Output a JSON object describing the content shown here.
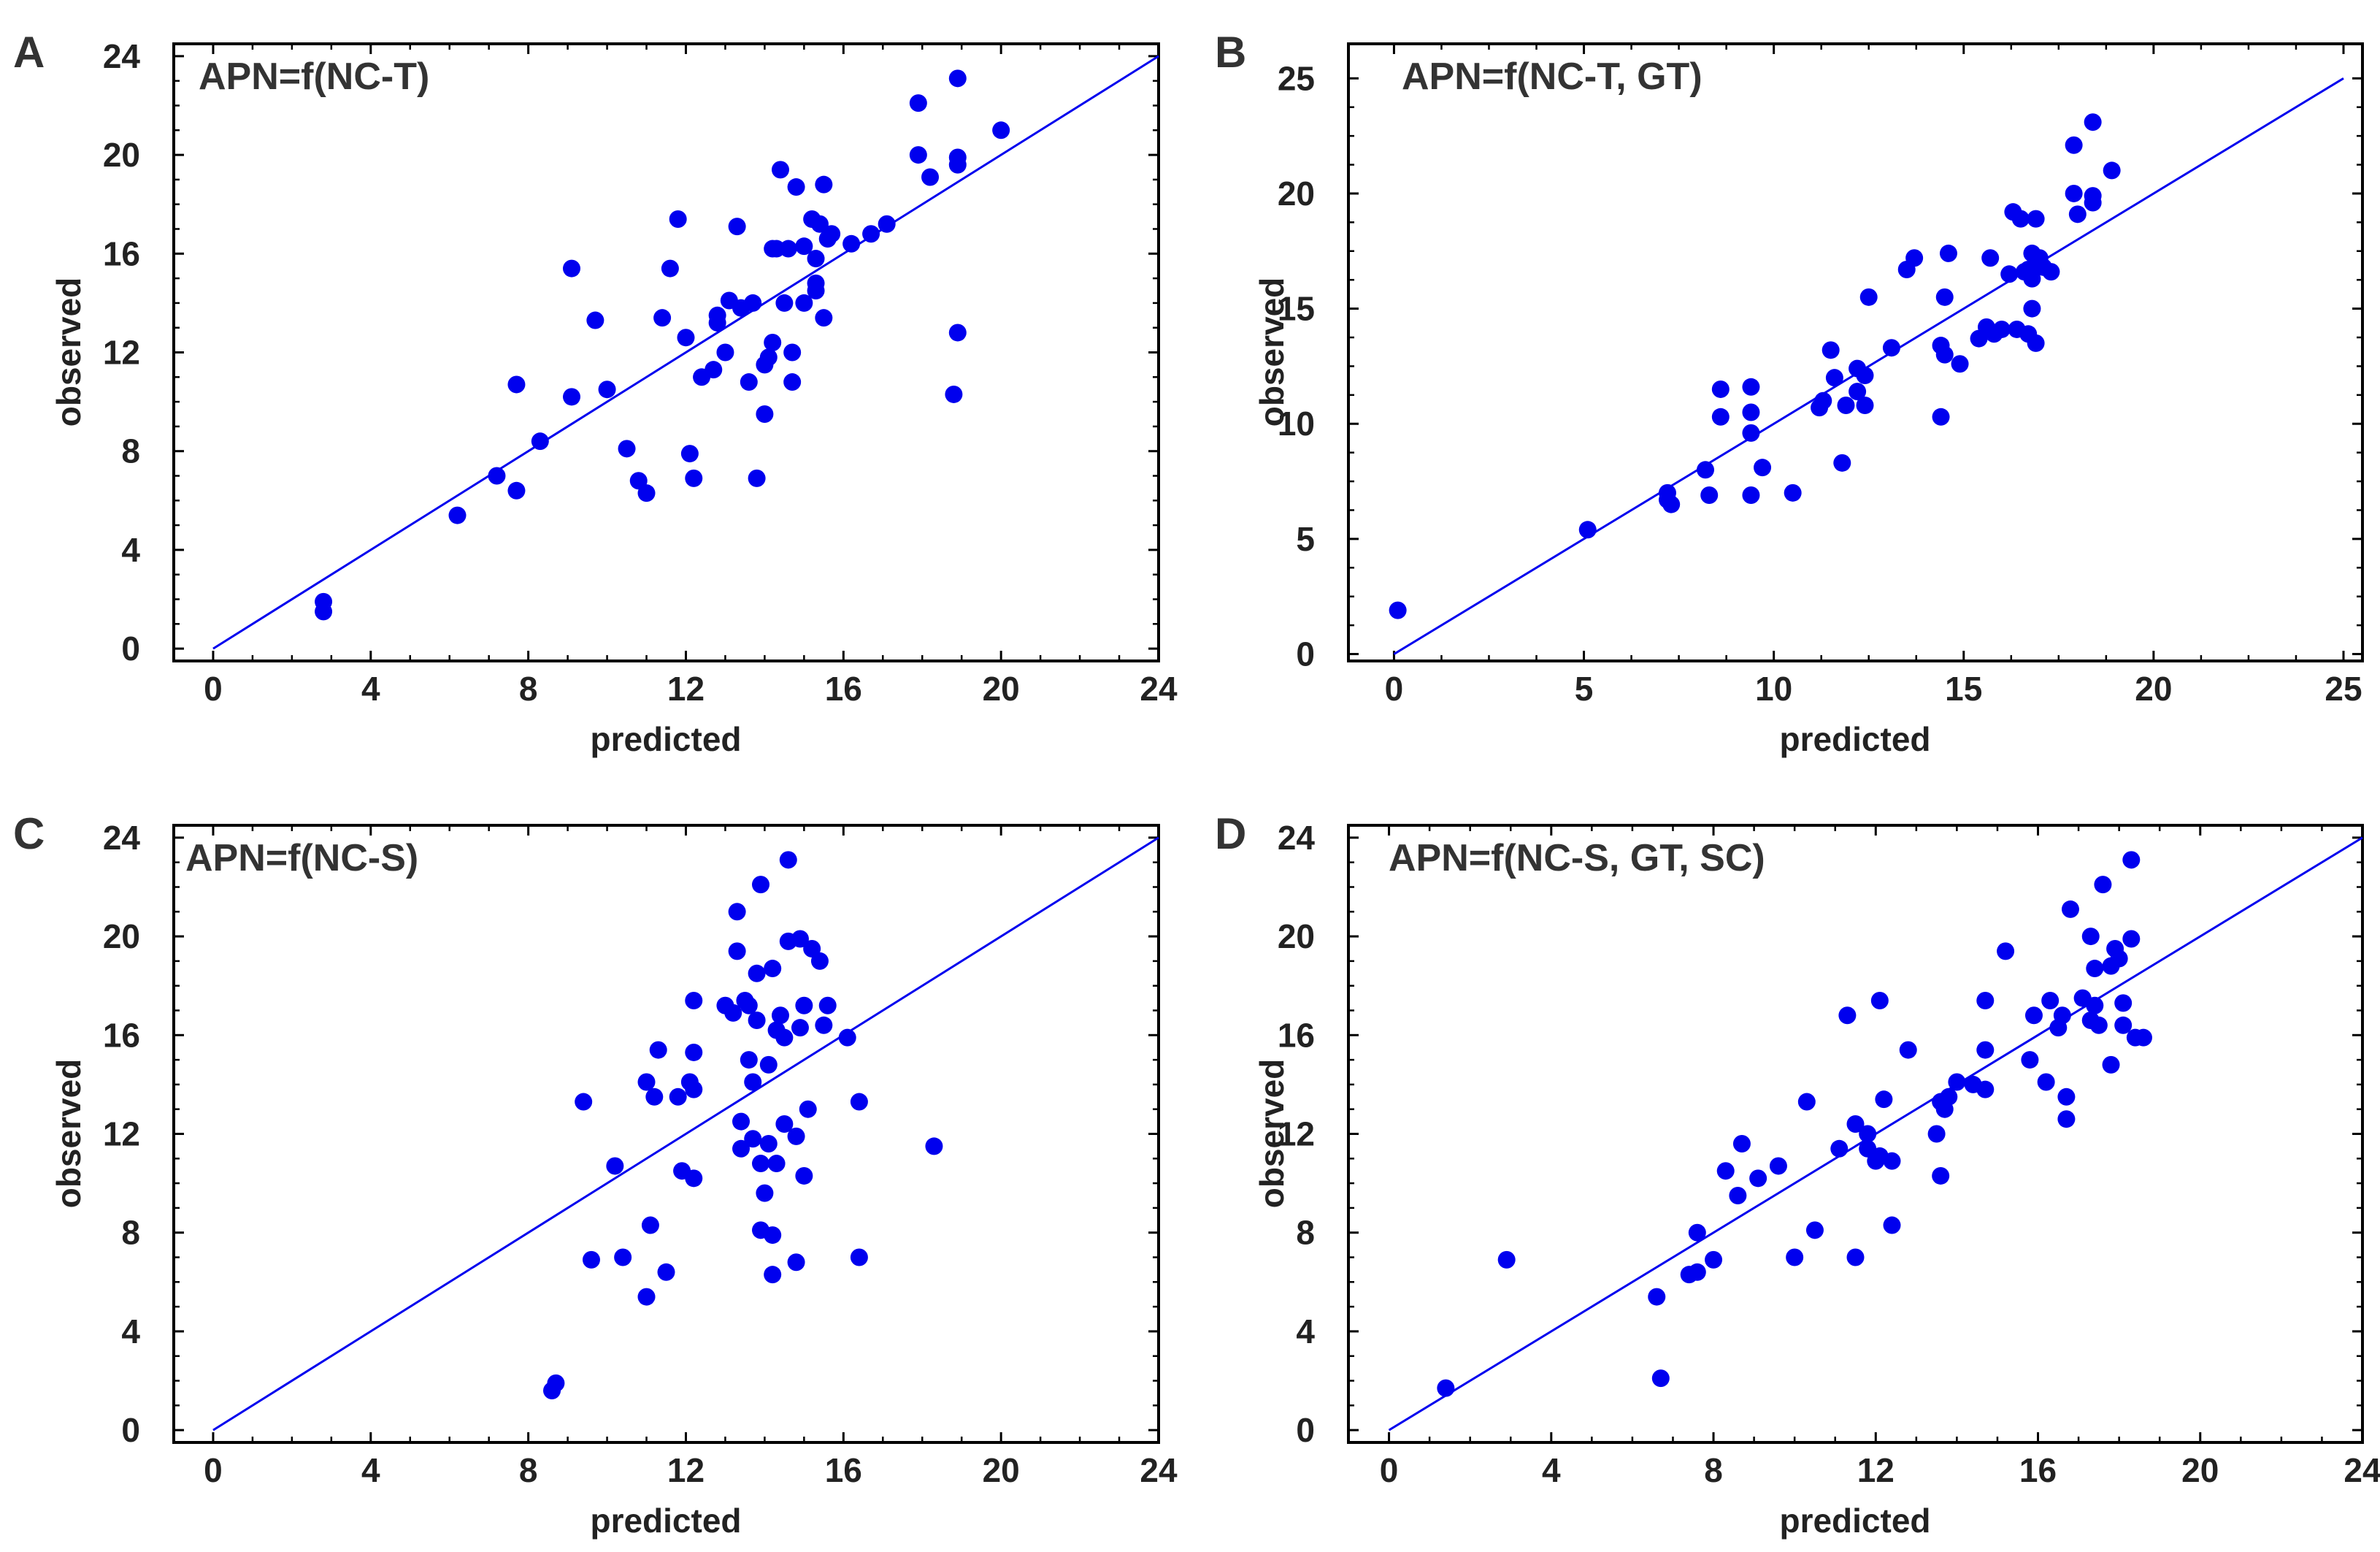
{
  "colors": {
    "points": "#0000ee",
    "line": "#0000ee",
    "frame": "#000000",
    "text": "#222222"
  },
  "chart_data": [
    {
      "type": "scatter",
      "panel": "A",
      "title": "APN=f(NC-T)",
      "xlabel": "predicted",
      "ylabel": "observed",
      "xlim": [
        -1,
        24
      ],
      "ylim": [
        -0.5,
        24.5
      ],
      "xticks": [
        "0",
        "4",
        "8",
        "12",
        "16",
        "20",
        "24"
      ],
      "yticks": [
        "0",
        "4",
        "8",
        "12",
        "16",
        "20",
        "24"
      ],
      "line": [
        [
          0,
          0
        ],
        [
          24,
          24
        ]
      ],
      "points": [
        [
          2.8,
          1.9
        ],
        [
          2.8,
          1.5
        ],
        [
          6.2,
          5.4
        ],
        [
          7.2,
          7.0
        ],
        [
          7.7,
          6.4
        ],
        [
          7.7,
          10.7
        ],
        [
          8.3,
          8.4
        ],
        [
          9.1,
          15.4
        ],
        [
          9.1,
          10.2
        ],
        [
          9.7,
          13.3
        ],
        [
          10.0,
          10.5
        ],
        [
          10.5,
          8.1
        ],
        [
          10.8,
          6.8
        ],
        [
          11.0,
          6.3
        ],
        [
          11.4,
          13.4
        ],
        [
          11.6,
          15.4
        ],
        [
          11.8,
          17.4
        ],
        [
          12.0,
          12.6
        ],
        [
          12.1,
          7.9
        ],
        [
          12.2,
          6.9
        ],
        [
          12.4,
          11.0
        ],
        [
          12.7,
          11.3
        ],
        [
          12.8,
          13.2
        ],
        [
          12.8,
          13.5
        ],
        [
          13.0,
          12.0
        ],
        [
          13.1,
          14.1
        ],
        [
          13.3,
          17.1
        ],
        [
          13.4,
          13.8
        ],
        [
          13.6,
          10.8
        ],
        [
          13.7,
          14.0
        ],
        [
          13.8,
          6.9
        ],
        [
          14.0,
          11.5
        ],
        [
          14.0,
          9.5
        ],
        [
          14.1,
          11.8
        ],
        [
          14.2,
          16.2
        ],
        [
          14.2,
          12.4
        ],
        [
          14.3,
          16.2
        ],
        [
          14.4,
          19.4
        ],
        [
          14.5,
          14.0
        ],
        [
          14.6,
          16.2
        ],
        [
          14.7,
          10.8
        ],
        [
          14.7,
          12.0
        ],
        [
          14.8,
          18.7
        ],
        [
          15.0,
          16.3
        ],
        [
          15.0,
          14.0
        ],
        [
          15.2,
          17.4
        ],
        [
          15.3,
          15.8
        ],
        [
          15.3,
          14.8
        ],
        [
          15.3,
          14.5
        ],
        [
          15.4,
          17.2
        ],
        [
          15.5,
          13.4
        ],
        [
          15.5,
          18.8
        ],
        [
          15.6,
          16.6
        ],
        [
          15.7,
          16.8
        ],
        [
          16.2,
          16.4
        ],
        [
          16.7,
          16.8
        ],
        [
          17.1,
          17.2
        ],
        [
          17.9,
          22.1
        ],
        [
          17.9,
          20.0
        ],
        [
          18.2,
          19.1
        ],
        [
          18.8,
          10.3
        ],
        [
          18.9,
          23.1
        ],
        [
          18.9,
          19.6
        ],
        [
          18.9,
          19.9
        ],
        [
          18.9,
          12.8
        ],
        [
          20.0,
          21.0
        ]
      ]
    },
    {
      "type": "scatter",
      "panel": "B",
      "title": "APN=f(NC-T, GT)",
      "xlabel": "predicted",
      "ylabel": "observed",
      "xlim": [
        -1.2,
        25.5
      ],
      "ylim": [
        -0.3,
        26.5
      ],
      "xticks": [
        "0",
        "5",
        "10",
        "15",
        "20",
        "25"
      ],
      "yticks": [
        "0",
        "5",
        "10",
        "15",
        "20",
        "25"
      ],
      "line": [
        [
          0,
          0
        ],
        [
          25,
          25
        ]
      ],
      "points": [
        [
          0.1,
          1.9
        ],
        [
          5.1,
          5.4
        ],
        [
          7.2,
          7.0
        ],
        [
          7.2,
          6.7
        ],
        [
          7.3,
          6.5
        ],
        [
          8.2,
          8.0
        ],
        [
          8.3,
          6.9
        ],
        [
          8.6,
          10.3
        ],
        [
          8.6,
          11.5
        ],
        [
          9.4,
          11.6
        ],
        [
          9.4,
          10.5
        ],
        [
          9.4,
          9.6
        ],
        [
          9.4,
          6.9
        ],
        [
          9.7,
          8.1
        ],
        [
          10.5,
          7.0
        ],
        [
          11.2,
          10.7
        ],
        [
          11.3,
          11.0
        ],
        [
          11.5,
          13.2
        ],
        [
          11.6,
          12.0
        ],
        [
          11.8,
          8.3
        ],
        [
          11.9,
          10.8
        ],
        [
          12.2,
          12.4
        ],
        [
          12.2,
          11.4
        ],
        [
          12.4,
          12.1
        ],
        [
          12.4,
          10.8
        ],
        [
          12.5,
          15.5
        ],
        [
          13.1,
          13.3
        ],
        [
          13.5,
          16.7
        ],
        [
          13.7,
          17.2
        ],
        [
          14.4,
          13.4
        ],
        [
          14.4,
          10.3
        ],
        [
          14.5,
          13.0
        ],
        [
          14.5,
          15.5
        ],
        [
          14.6,
          17.4
        ],
        [
          14.9,
          12.6
        ],
        [
          15.4,
          13.7
        ],
        [
          15.6,
          14.2
        ],
        [
          15.7,
          17.2
        ],
        [
          15.8,
          13.9
        ],
        [
          16.0,
          14.1
        ],
        [
          16.2,
          16.5
        ],
        [
          16.3,
          19.2
        ],
        [
          16.4,
          14.1
        ],
        [
          16.5,
          18.9
        ],
        [
          16.6,
          16.6
        ],
        [
          16.7,
          13.9
        ],
        [
          16.7,
          16.7
        ],
        [
          16.8,
          15.0
        ],
        [
          16.8,
          17.4
        ],
        [
          16.8,
          16.3
        ],
        [
          16.9,
          18.9
        ],
        [
          16.9,
          13.5
        ],
        [
          17.0,
          17.2
        ],
        [
          17.1,
          16.8
        ],
        [
          17.3,
          16.6
        ],
        [
          17.9,
          20.0
        ],
        [
          17.9,
          22.1
        ],
        [
          18.0,
          19.1
        ],
        [
          18.4,
          23.1
        ],
        [
          18.4,
          19.9
        ],
        [
          18.4,
          19.6
        ],
        [
          18.9,
          21.0
        ]
      ]
    },
    {
      "type": "scatter",
      "panel": "C",
      "title": "APN=f(NC-S)",
      "xlabel": "predicted",
      "ylabel": "observed",
      "xlim": [
        -1,
        24
      ],
      "ylim": [
        -0.5,
        24.5
      ],
      "xticks": [
        "0",
        "4",
        "8",
        "12",
        "16",
        "20",
        "24"
      ],
      "yticks": [
        "0",
        "4",
        "8",
        "12",
        "16",
        "20",
        "24"
      ],
      "line": [
        [
          0,
          0
        ],
        [
          24,
          24
        ]
      ],
      "points": [
        [
          8.6,
          1.6
        ],
        [
          8.7,
          1.9
        ],
        [
          9.4,
          13.3
        ],
        [
          9.6,
          6.9
        ],
        [
          10.2,
          10.7
        ],
        [
          10.4,
          7.0
        ],
        [
          11.0,
          5.4
        ],
        [
          11.0,
          14.1
        ],
        [
          11.1,
          8.3
        ],
        [
          11.2,
          13.5
        ],
        [
          11.3,
          15.4
        ],
        [
          11.5,
          6.4
        ],
        [
          11.8,
          13.5
        ],
        [
          11.9,
          10.5
        ],
        [
          12.1,
          14.1
        ],
        [
          12.2,
          15.3
        ],
        [
          12.2,
          10.2
        ],
        [
          12.2,
          17.4
        ],
        [
          12.2,
          13.8
        ],
        [
          13.0,
          17.2
        ],
        [
          13.2,
          16.9
        ],
        [
          13.3,
          21.0
        ],
        [
          13.3,
          19.4
        ],
        [
          13.4,
          12.5
        ],
        [
          13.4,
          11.4
        ],
        [
          13.5,
          17.4
        ],
        [
          13.6,
          15.0
        ],
        [
          13.6,
          17.2
        ],
        [
          13.7,
          14.1
        ],
        [
          13.7,
          11.8
        ],
        [
          13.8,
          18.5
        ],
        [
          13.8,
          16.6
        ],
        [
          13.9,
          8.1
        ],
        [
          13.9,
          10.8
        ],
        [
          13.9,
          22.1
        ],
        [
          14.0,
          9.6
        ],
        [
          14.1,
          14.8
        ],
        [
          14.1,
          11.6
        ],
        [
          14.2,
          6.3
        ],
        [
          14.2,
          18.7
        ],
        [
          14.2,
          7.9
        ],
        [
          14.3,
          16.2
        ],
        [
          14.3,
          10.8
        ],
        [
          14.4,
          16.8
        ],
        [
          14.5,
          12.4
        ],
        [
          14.5,
          15.9
        ],
        [
          14.6,
          19.8
        ],
        [
          14.6,
          23.1
        ],
        [
          14.8,
          6.8
        ],
        [
          14.8,
          11.9
        ],
        [
          14.9,
          16.3
        ],
        [
          14.9,
          19.9
        ],
        [
          15.0,
          17.2
        ],
        [
          15.0,
          10.3
        ],
        [
          15.1,
          13.0
        ],
        [
          15.2,
          19.5
        ],
        [
          15.4,
          19.0
        ],
        [
          15.5,
          16.4
        ],
        [
          15.6,
          17.2
        ],
        [
          16.1,
          15.9
        ],
        [
          16.4,
          13.3
        ],
        [
          16.4,
          7.0
        ],
        [
          18.3,
          11.5
        ]
      ]
    },
    {
      "type": "scatter",
      "panel": "D",
      "title": "APN=f(NC-S, GT, SC)",
      "xlabel": "predicted",
      "ylabel": "observed",
      "xlim": [
        -1,
        24
      ],
      "ylim": [
        -0.5,
        24.5
      ],
      "xticks": [
        "0",
        "4",
        "8",
        "12",
        "16",
        "20",
        "24"
      ],
      "yticks": [
        "0",
        "4",
        "8",
        "12",
        "16",
        "20",
        "24"
      ],
      "line": [
        [
          0,
          0
        ],
        [
          24,
          24
        ]
      ],
      "points": [
        [
          1.4,
          1.7
        ],
        [
          2.9,
          6.9
        ],
        [
          6.6,
          5.4
        ],
        [
          6.7,
          2.1
        ],
        [
          7.4,
          6.3
        ],
        [
          7.6,
          6.4
        ],
        [
          7.6,
          8.0
        ],
        [
          8.0,
          6.9
        ],
        [
          8.3,
          10.5
        ],
        [
          8.6,
          9.5
        ],
        [
          8.7,
          11.6
        ],
        [
          9.1,
          10.2
        ],
        [
          9.6,
          10.7
        ],
        [
          10.0,
          7.0
        ],
        [
          10.3,
          13.3
        ],
        [
          10.5,
          8.1
        ],
        [
          11.1,
          11.4
        ],
        [
          11.3,
          16.8
        ],
        [
          11.5,
          12.4
        ],
        [
          11.5,
          7.0
        ],
        [
          11.8,
          12.0
        ],
        [
          11.8,
          11.4
        ],
        [
          12.0,
          10.9
        ],
        [
          12.1,
          11.1
        ],
        [
          12.1,
          17.4
        ],
        [
          12.2,
          13.4
        ],
        [
          12.4,
          10.9
        ],
        [
          12.4,
          8.3
        ],
        [
          12.8,
          15.4
        ],
        [
          13.5,
          12.0
        ],
        [
          13.6,
          10.3
        ],
        [
          13.6,
          13.3
        ],
        [
          13.7,
          13.0
        ],
        [
          13.8,
          13.5
        ],
        [
          14.0,
          14.1
        ],
        [
          14.4,
          14.0
        ],
        [
          14.7,
          17.4
        ],
        [
          14.7,
          15.4
        ],
        [
          14.7,
          13.8
        ],
        [
          15.2,
          19.4
        ],
        [
          15.8,
          15.0
        ],
        [
          15.9,
          16.8
        ],
        [
          16.2,
          14.1
        ],
        [
          16.3,
          17.4
        ],
        [
          16.5,
          16.3
        ],
        [
          16.6,
          16.8
        ],
        [
          16.7,
          12.6
        ],
        [
          16.7,
          13.5
        ],
        [
          16.8,
          21.1
        ],
        [
          17.1,
          17.5
        ],
        [
          17.3,
          20.0
        ],
        [
          17.3,
          16.6
        ],
        [
          17.4,
          17.2
        ],
        [
          17.4,
          18.7
        ],
        [
          17.5,
          16.4
        ],
        [
          17.6,
          22.1
        ],
        [
          17.8,
          18.8
        ],
        [
          17.8,
          14.8
        ],
        [
          17.9,
          19.5
        ],
        [
          18.0,
          19.1
        ],
        [
          18.1,
          16.4
        ],
        [
          18.1,
          17.3
        ],
        [
          18.3,
          23.1
        ],
        [
          18.3,
          19.9
        ],
        [
          18.4,
          15.9
        ],
        [
          18.6,
          15.9
        ]
      ]
    }
  ]
}
